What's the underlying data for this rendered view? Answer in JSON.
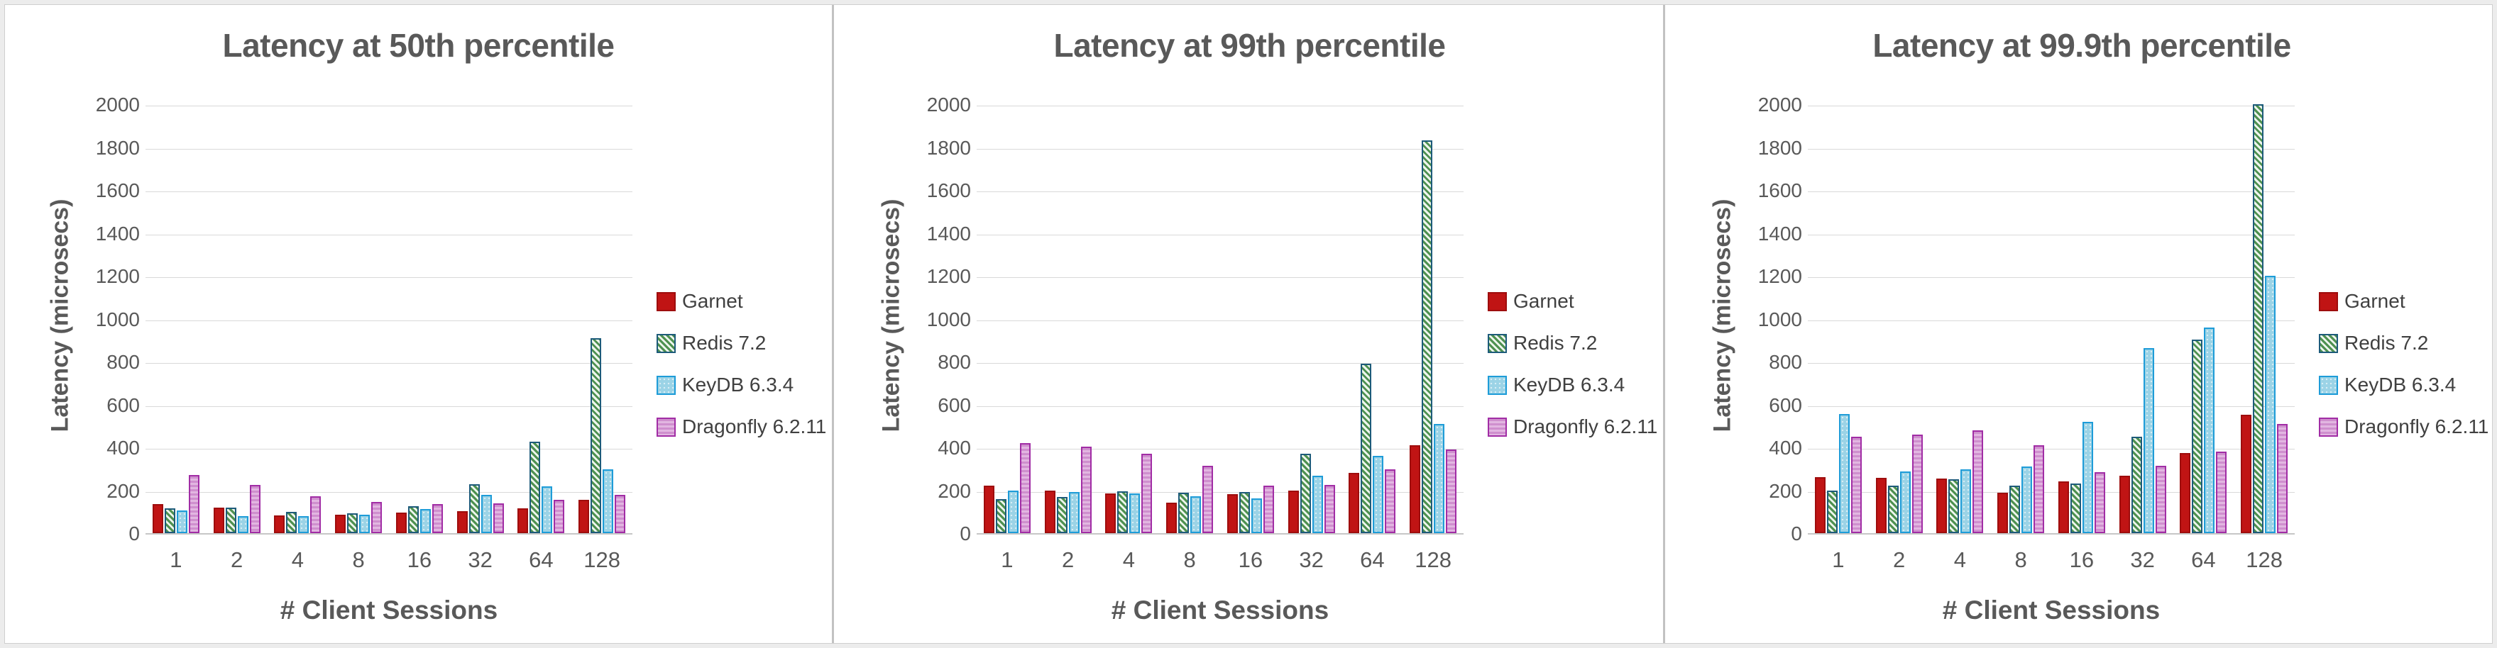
{
  "page": {
    "background": "#ffffff",
    "frame_color": "#ececec"
  },
  "axes": {
    "y_label": "Latency (microsecs)",
    "x_label": "# Client Sessions",
    "ylim": [
      0,
      2000
    ],
    "ytick_step": 200,
    "grid": "horizontal",
    "gridline_color": "#d9d9d9",
    "text_color": "#595959"
  },
  "legend": {
    "position": "right",
    "labels": [
      "Garnet",
      "Redis 7.2",
      "KeyDB 6.3.4",
      "Dragonfly 6.2.11"
    ]
  },
  "series_styles": [
    {
      "key": "garnet",
      "name": "Garnet",
      "fill": "#c01414",
      "border": "#9e0d0d",
      "pattern": "solid"
    },
    {
      "key": "redis",
      "name": "Redis 7.2",
      "fill": "#4e9150",
      "border": "#1d5b7a",
      "pattern": "diagonal-hatch"
    },
    {
      "key": "keydb",
      "name": "KeyDB 6.3.4",
      "fill": "#9bd3e6",
      "border": "#1e9cd8",
      "pattern": "dots"
    },
    {
      "key": "dragonfly",
      "name": "Dragonfly 6.2.11",
      "fill": "#d9a3d8",
      "border": "#a12da5",
      "pattern": "horizontal-lines"
    }
  ],
  "chart_data": [
    {
      "type": "bar",
      "title": "Latency at 50th percentile",
      "xlabel": "# Client Sessions",
      "ylabel": "Latency (microsecs)",
      "ylim": [
        0,
        2000
      ],
      "categories": [
        "1",
        "2",
        "4",
        "8",
        "16",
        "32",
        "64",
        "128"
      ],
      "series": [
        {
          "name": "Garnet",
          "key": "garnet",
          "values": [
            135,
            118,
            82,
            87,
            97,
            102,
            115,
            154
          ]
        },
        {
          "name": "Redis 7.2",
          "key": "redis",
          "values": [
            115,
            120,
            100,
            94,
            127,
            229,
            428,
            910
          ]
        },
        {
          "name": "KeyDB 6.3.4",
          "key": "keydb",
          "values": [
            105,
            80,
            80,
            86,
            111,
            180,
            219,
            297
          ]
        },
        {
          "name": "Dragonfly 6.2.11",
          "key": "dragonfly",
          "values": [
            270,
            225,
            172,
            144,
            137,
            140,
            154,
            180
          ]
        }
      ]
    },
    {
      "type": "bar",
      "title": "Latency at 99th percentile",
      "xlabel": "# Client Sessions",
      "ylabel": "Latency (microsecs)",
      "ylim": [
        0,
        2000
      ],
      "categories": [
        "1",
        "2",
        "4",
        "8",
        "16",
        "32",
        "64",
        "128"
      ],
      "series": [
        {
          "name": "Garnet",
          "key": "garnet",
          "values": [
            222,
            198,
            185,
            143,
            183,
            200,
            280,
            411
          ]
        },
        {
          "name": "Redis 7.2",
          "key": "redis",
          "values": [
            160,
            170,
            195,
            190,
            191,
            370,
            790,
            1830
          ]
        },
        {
          "name": "KeyDB 6.3.4",
          "key": "keydb",
          "values": [
            200,
            192,
            185,
            171,
            163,
            268,
            361,
            510
          ]
        },
        {
          "name": "Dragonfly 6.2.11",
          "key": "dragonfly",
          "values": [
            420,
            405,
            370,
            315,
            220,
            225,
            296,
            391
          ]
        }
      ]
    },
    {
      "type": "bar",
      "title": "Latency at 99.9th percentile",
      "xlabel": "# Client Sessions",
      "ylabel": "Latency (microsecs)",
      "ylim": [
        0,
        2000
      ],
      "categories": [
        "1",
        "2",
        "4",
        "8",
        "16",
        "32",
        "64",
        "128"
      ],
      "series": [
        {
          "name": "Garnet",
          "key": "garnet",
          "values": [
            262,
            257,
            254,
            188,
            240,
            267,
            372,
            552
          ]
        },
        {
          "name": "Redis 7.2",
          "key": "redis",
          "values": [
            200,
            221,
            252,
            223,
            230,
            449,
            903,
            2000
          ]
        },
        {
          "name": "KeyDB 6.3.4",
          "key": "keydb",
          "values": [
            555,
            287,
            296,
            310,
            519,
            862,
            958,
            1200
          ]
        },
        {
          "name": "Dragonfly 6.2.11",
          "key": "dragonfly",
          "values": [
            451,
            458,
            478,
            409,
            283,
            315,
            381,
            508
          ]
        }
      ]
    }
  ]
}
